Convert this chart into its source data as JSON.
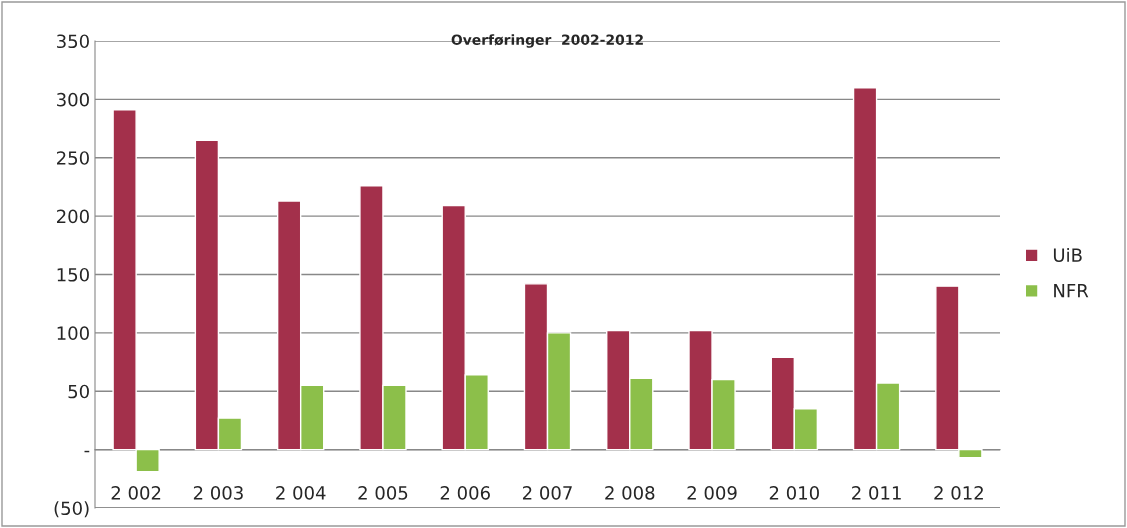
{
  "chart_data": {
    "type": "bar",
    "title": "Overføringer  2002-2012",
    "categories": [
      "2 002",
      "2 003",
      "2 004",
      "2 005",
      "2 006",
      "2 007",
      "2 008",
      "2 009",
      "2 010",
      "2 011",
      "2 012"
    ],
    "series": [
      {
        "name": "UiB",
        "color": "#a3304b",
        "values": [
          291,
          265,
          213,
          226,
          209,
          142,
          102,
          102,
          79,
          310,
          140
        ]
      },
      {
        "name": "NFR",
        "color": "#8cbf4a",
        "values": [
          -19,
          27,
          55,
          55,
          64,
          100,
          61,
          60,
          35,
          57,
          -7
        ]
      }
    ],
    "ylim": [
      -50,
      350
    ],
    "yticks": [
      {
        "value": -50,
        "label": "(50)"
      },
      {
        "value": 0,
        "label": "-"
      },
      50,
      100,
      150,
      200,
      250,
      300,
      350
    ],
    "grid": "y",
    "legend": "right"
  }
}
